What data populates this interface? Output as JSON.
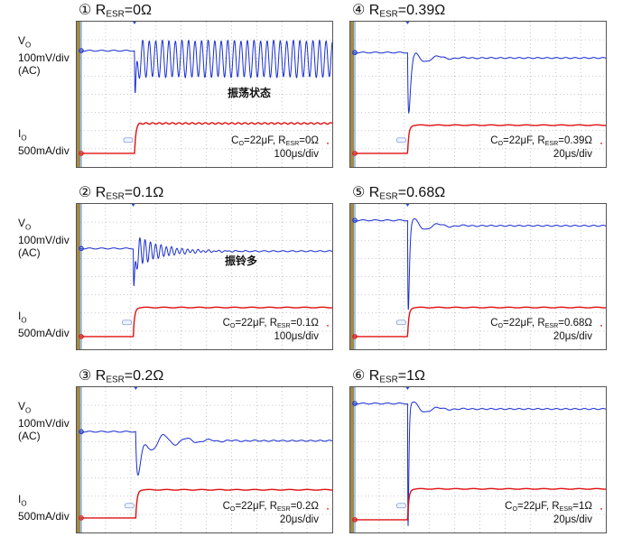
{
  "axis_labels": {
    "vo": "Vo",
    "vo_sub": "O",
    "vo_main": "V",
    "vo_scale": "100mV/div",
    "vo_coupling": "(AC)",
    "io_main": "I",
    "io_sub": "O",
    "io_scale": "500mA/div"
  },
  "colors": {
    "vo_trace": "#1a2fd0",
    "io_trace": "#e01010",
    "grid": "#b8b8b8",
    "frame": "#555555",
    "left_bar": "#a08a4a"
  },
  "chart_data": [
    {
      "type": "line",
      "number": "①",
      "title_r": "R",
      "title_sub": "ESR",
      "title_val": "=0Ω",
      "note": "振荡状态",
      "cond_c": "C",
      "cond_csub": "O",
      "cond_cval": "=22μF, R",
      "cond_rsub": "ESR",
      "cond_rval": "=0Ω",
      "timebase": "100μs/div",
      "grid": true,
      "divisions": [
        10,
        8
      ],
      "vo": {
        "base_div": 1.6,
        "settle_div": 2.05,
        "dip_div": 4.2,
        "rise": 0.03,
        "ring_amp": 0,
        "ring_period": 0.26,
        "ring_decay": 1,
        "sustained_amp": 1.0
      },
      "io": {
        "low_div": 7.25,
        "high_div": 5.6
      },
      "step_div": 2.15
    },
    {
      "type": "line",
      "number": "②",
      "title_r": "R",
      "title_sub": "ESR",
      "title_val": "=0.1Ω",
      "note": "振铃多",
      "cond_c": "C",
      "cond_csub": "O",
      "cond_cval": "=22μF, R",
      "cond_rsub": "ESR",
      "cond_rval": "=0.1Ω",
      "timebase": "100μs/div",
      "grid": true,
      "divisions": [
        10,
        8
      ],
      "vo": {
        "base_div": 2.45,
        "settle_div": 2.6,
        "dip_div": 4.8,
        "rise": 0.03,
        "ring_amp": 1.0,
        "ring_period": 0.21,
        "ring_decay": 1.0,
        "sustained_amp": 0
      },
      "io": {
        "low_div": 7.3,
        "high_div": 5.7
      },
      "step_div": 2.1
    },
    {
      "type": "line",
      "number": "③",
      "title_r": "R",
      "title_sub": "ESR",
      "title_val": "=0.2Ω",
      "note": "",
      "cond_c": "C",
      "cond_csub": "O",
      "cond_cval": "=22μF, R",
      "cond_rsub": "ESR",
      "cond_rval": "=0.2Ω",
      "timebase": "20μs/div",
      "grid": true,
      "divisions": [
        10,
        8
      ],
      "vo": {
        "base_div": 2.45,
        "settle_div": 2.95,
        "dip_div": 5.0,
        "rise": 0.1,
        "ring_amp": 0.9,
        "ring_period": 0.9,
        "ring_decay": 1.1,
        "sustained_amp": 0
      },
      "io": {
        "low_div": 7.2,
        "high_div": 5.65
      },
      "step_div": 2.2
    },
    {
      "type": "line",
      "number": "④",
      "title_r": "R",
      "title_sub": "ESR",
      "title_val": "=0.39Ω",
      "note": "",
      "cond_c": "C",
      "cond_csub": "O",
      "cond_cval": "=22μF, R",
      "cond_rsub": "ESR",
      "cond_rval": "=0.39Ω",
      "timebase": "20μs/div",
      "grid": true,
      "divisions": [
        10,
        8
      ],
      "vo": {
        "base_div": 1.7,
        "settle_div": 2.0,
        "dip_div": 5.1,
        "rise": 0.05,
        "ring_amp": 0.6,
        "ring_period": 1.0,
        "ring_decay": 0.7,
        "sustained_amp": 0
      },
      "io": {
        "low_div": 7.25,
        "high_div": 5.7
      },
      "step_div": 2.13
    },
    {
      "type": "line",
      "number": "⑤",
      "title_r": "R",
      "title_sub": "ESR",
      "title_val": "=0.68Ω",
      "note": "",
      "cond_c": "C",
      "cond_csub": "O",
      "cond_cval": "=22μF, R",
      "cond_rsub": "ESR",
      "cond_rval": "=0.68Ω",
      "timebase": "20μs/div",
      "grid": true,
      "divisions": [
        10,
        8
      ],
      "vo": {
        "base_div": 0.9,
        "settle_div": 1.2,
        "dip_div": 5.9,
        "rise": 0.03,
        "ring_amp": 0.6,
        "ring_period": 1.0,
        "ring_decay": 0.7,
        "sustained_amp": 0
      },
      "io": {
        "low_div": 7.3,
        "high_div": 5.7
      },
      "step_div": 2.13
    },
    {
      "type": "line",
      "number": "⑥",
      "title_r": "R",
      "title_sub": "ESR",
      "title_val": "=1Ω",
      "note": "",
      "cond_c": "C",
      "cond_csub": "O",
      "cond_cval": "=22μF, R",
      "cond_rsub": "ESR",
      "cond_rval": "=1Ω",
      "timebase": "20μs/div",
      "grid": true,
      "divisions": [
        10,
        8
      ],
      "vo": {
        "base_div": 0.9,
        "settle_div": 1.2,
        "dip_div": 7.7,
        "rise": 0.02,
        "ring_amp": 0.6,
        "ring_period": 1.0,
        "ring_decay": 0.6,
        "sustained_amp": 0
      },
      "io": {
        "low_div": 7.3,
        "high_div": 5.6
      },
      "step_div": 2.13
    }
  ]
}
